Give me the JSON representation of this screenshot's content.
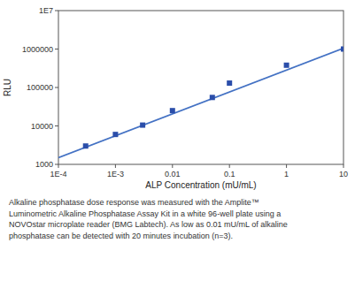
{
  "chart_data": {
    "type": "scatter",
    "xlabel": "ALP Concentration (mU/mL)",
    "ylabel": "RLU",
    "log": true,
    "grid": false,
    "xlim": [
      0.0001,
      10
    ],
    "ylim": [
      1000,
      10000000
    ],
    "xticks": [
      {
        "value": 0.0001,
        "label": "1E-4"
      },
      {
        "value": 0.001,
        "label": "1E-3"
      },
      0.01,
      0.1,
      1,
      10
    ],
    "yticks": [
      1000,
      10000,
      100000,
      1000000,
      {
        "value": 10000000,
        "label": "1E7"
      }
    ],
    "series": [
      {
        "type": "line",
        "color": "#4472C4",
        "line_style": "solid",
        "x": [
          0.0001,
          10
        ],
        "values": [
          1500,
          1050000
        ]
      },
      {
        "type": "scatter",
        "color": "#2B4EAA",
        "marker": "square",
        "x": [
          0.0003,
          0.001,
          0.003,
          0.01,
          0.05,
          0.1,
          1,
          10
        ],
        "values": [
          3000,
          6000,
          10500,
          25000,
          55000,
          130000,
          380000,
          1000000
        ]
      }
    ],
    "annotations": [
      "Alkaline phosphatase dose response was measured with the Amplite™",
      "Luminometric Alkaline Phosphatase Assay Kit in a white 96-well plate using a",
      "NOVOstar microplate reader (BMG Labtech). As low as 0.01 mU/mL of alkaline",
      "phosphatase can be detected with 20 minutes incubation (n=3)."
    ]
  }
}
